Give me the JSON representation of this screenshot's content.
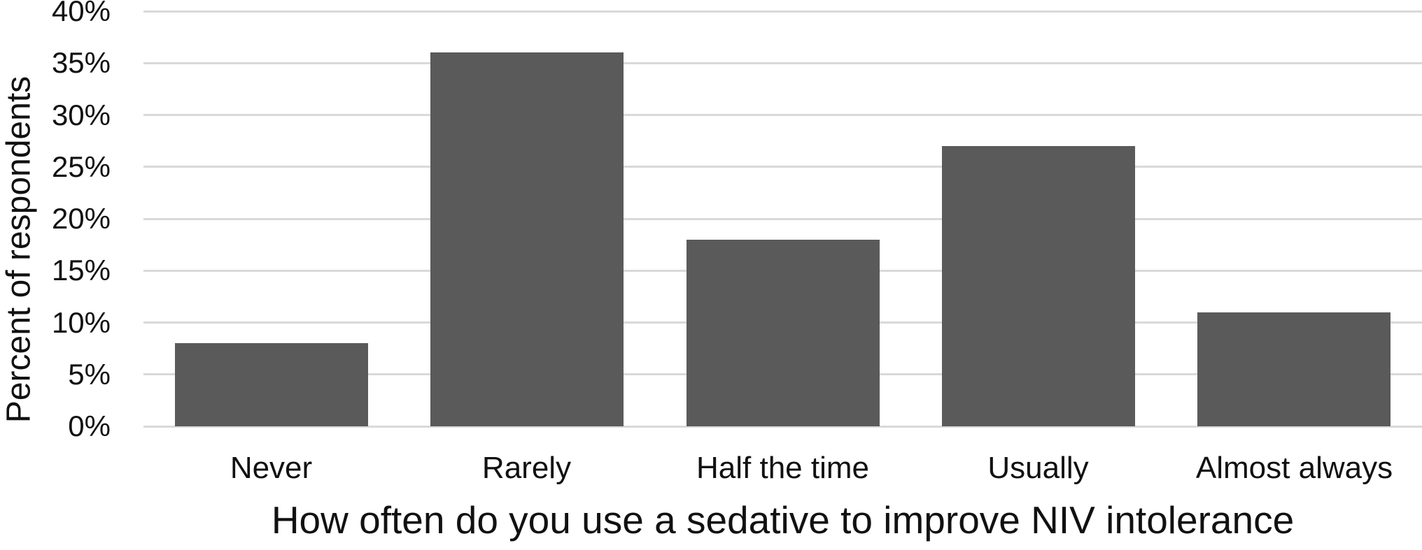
{
  "chart_data": {
    "type": "bar",
    "title": "",
    "xlabel": "How often do you use a sedative to improve NIV intolerance",
    "ylabel": "Percent of respondents",
    "categories": [
      "Never",
      "Rarely",
      "Half the time",
      "Usually",
      "Almost always"
    ],
    "values": [
      8,
      36,
      18,
      27,
      11
    ],
    "unit": "%",
    "ylim": [
      0,
      40
    ],
    "ytick_step": 5,
    "ytick_labels": [
      "0%",
      "5%",
      "10%",
      "15%",
      "20%",
      "25%",
      "30%",
      "35%",
      "40%"
    ],
    "grid": "horizontal",
    "legend": "none",
    "bar_color": "#5a5a5a",
    "gridline_color": "#d9d9d9",
    "text_color": "#111111",
    "background_color": "#ffffff"
  }
}
